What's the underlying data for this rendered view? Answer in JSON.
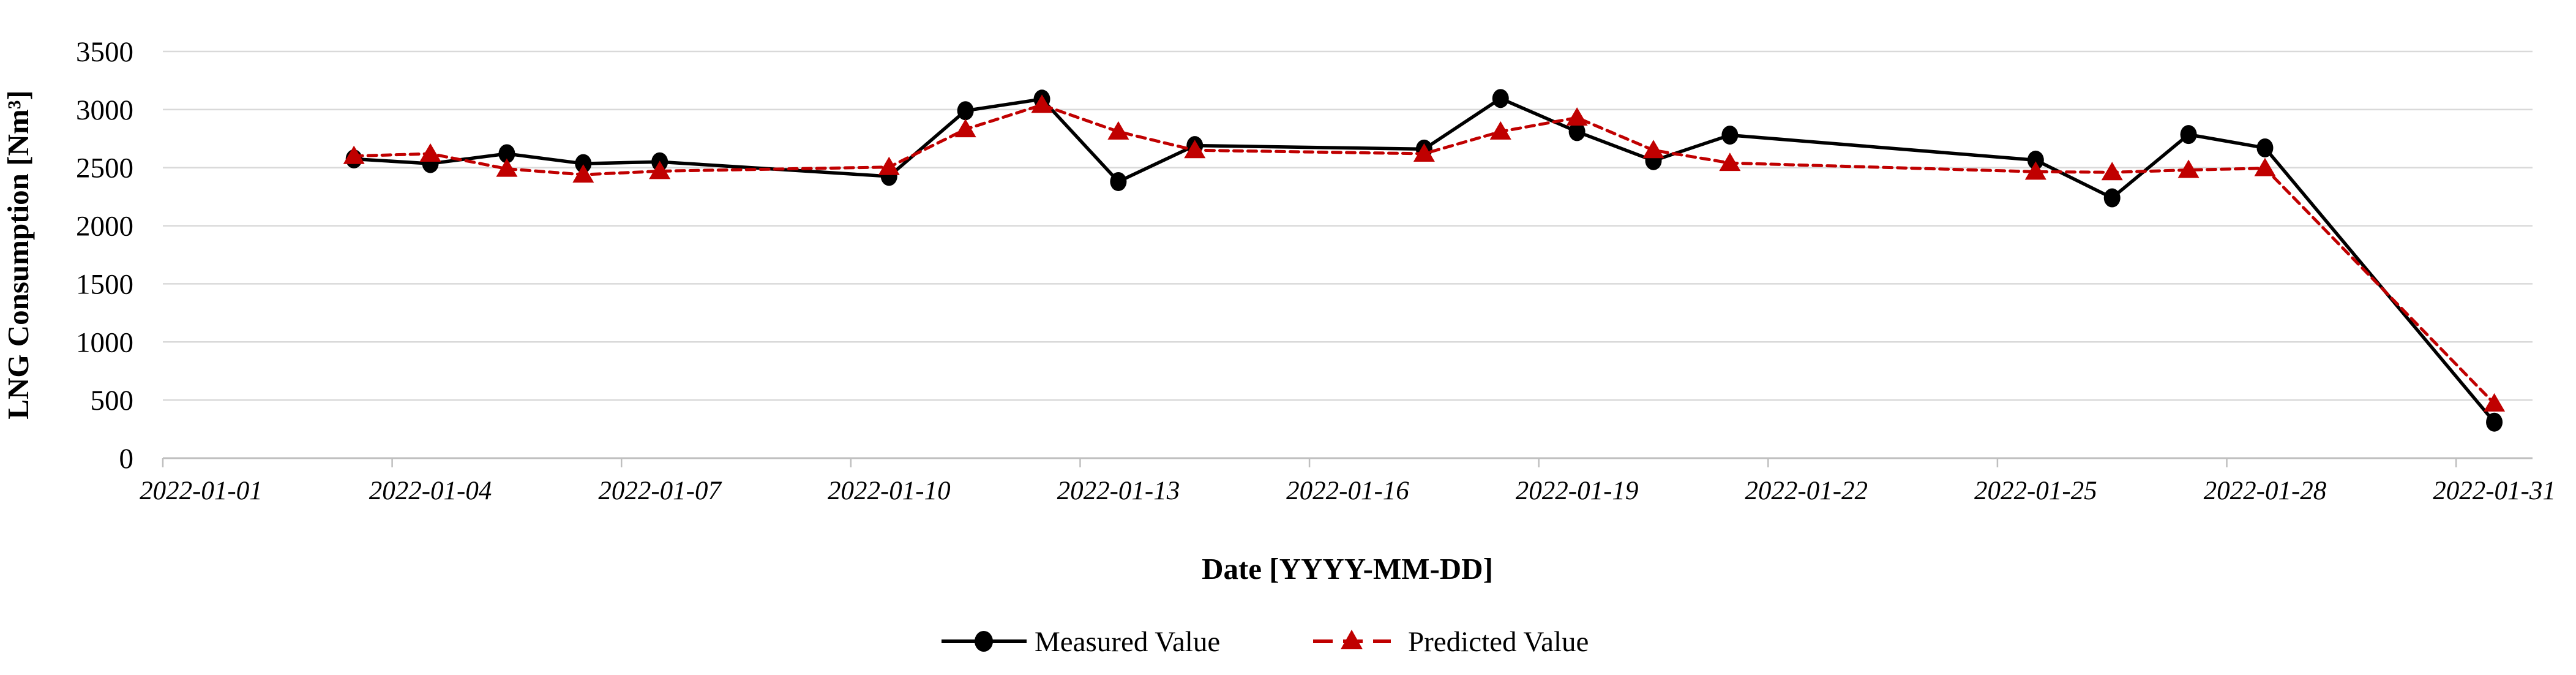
{
  "chart_data": {
    "type": "line",
    "title": "",
    "xlabel": "Date [YYYY-MM-DD]",
    "ylabel": "LNG Consumption [Nm³]",
    "ylim": [
      0,
      3500
    ],
    "yticks": [
      0,
      500,
      1000,
      1500,
      2000,
      2500,
      3000,
      3500
    ],
    "grid": "horizontal-only",
    "legend_position": "bottom-center",
    "x_axis": {
      "unit": "day of 2022-01",
      "category_range_days": 31,
      "tick_mark_interval_days": 3,
      "tick_labels": [
        "2022-01-01",
        "2022-01-04",
        "2022-01-07",
        "2022-01-10",
        "2022-01-13",
        "2022-01-16",
        "2022-01-19",
        "2022-01-22",
        "2022-01-25",
        "2022-01-28",
        "2022-01-31"
      ],
      "tick_label_days": [
        1,
        4,
        7,
        10,
        13,
        16,
        19,
        22,
        25,
        28,
        31
      ]
    },
    "colors": {
      "measured": "#000000",
      "predicted": "#C00000",
      "gridline": "#D9D9D9",
      "axis_line": "#BFBFBF"
    },
    "series": [
      {
        "name": "Measured Value",
        "color": "#000000",
        "line_style": "solid",
        "marker": "circle",
        "dates": [
          "2022-01-03",
          "2022-01-04",
          "2022-01-05",
          "2022-01-06",
          "2022-01-07",
          "2022-01-10",
          "2022-01-11",
          "2022-01-12",
          "2022-01-13",
          "2022-01-14",
          "2022-01-17",
          "2022-01-18",
          "2022-01-19",
          "2022-01-20",
          "2022-01-21",
          "2022-01-25",
          "2022-01-26",
          "2022-01-27",
          "2022-01-28",
          "2022-01-31"
        ],
        "x_days": [
          3,
          4,
          5,
          6,
          7,
          10,
          11,
          12,
          13,
          14,
          17,
          18,
          19,
          20,
          21,
          25,
          26,
          27,
          28,
          31
        ],
        "values": [
          2575,
          2535,
          2620,
          2535,
          2550,
          2425,
          2990,
          3090,
          2380,
          2690,
          2660,
          3095,
          2810,
          2560,
          2780,
          2565,
          2240,
          2785,
          2670,
          310
        ]
      },
      {
        "name": "Predicted Value",
        "color": "#C00000",
        "line_style": "dashed",
        "marker": "triangle",
        "dates": [
          "2022-01-03",
          "2022-01-04",
          "2022-01-05",
          "2022-01-06",
          "2022-01-07",
          "2022-01-10",
          "2022-01-11",
          "2022-01-12",
          "2022-01-13",
          "2022-01-14",
          "2022-01-17",
          "2022-01-18",
          "2022-01-19",
          "2022-01-20",
          "2022-01-21",
          "2022-01-25",
          "2022-01-26",
          "2022-01-27",
          "2022-01-28",
          "2022-01-31"
        ],
        "x_days": [
          3,
          4,
          5,
          6,
          7,
          10,
          11,
          12,
          13,
          14,
          17,
          18,
          19,
          20,
          21,
          25,
          26,
          27,
          28,
          31
        ],
        "values": [
          2600,
          2620,
          2490,
          2440,
          2470,
          2505,
          2830,
          3040,
          2810,
          2650,
          2620,
          2810,
          2930,
          2650,
          2540,
          2465,
          2460,
          2480,
          2495,
          470
        ]
      }
    ]
  }
}
